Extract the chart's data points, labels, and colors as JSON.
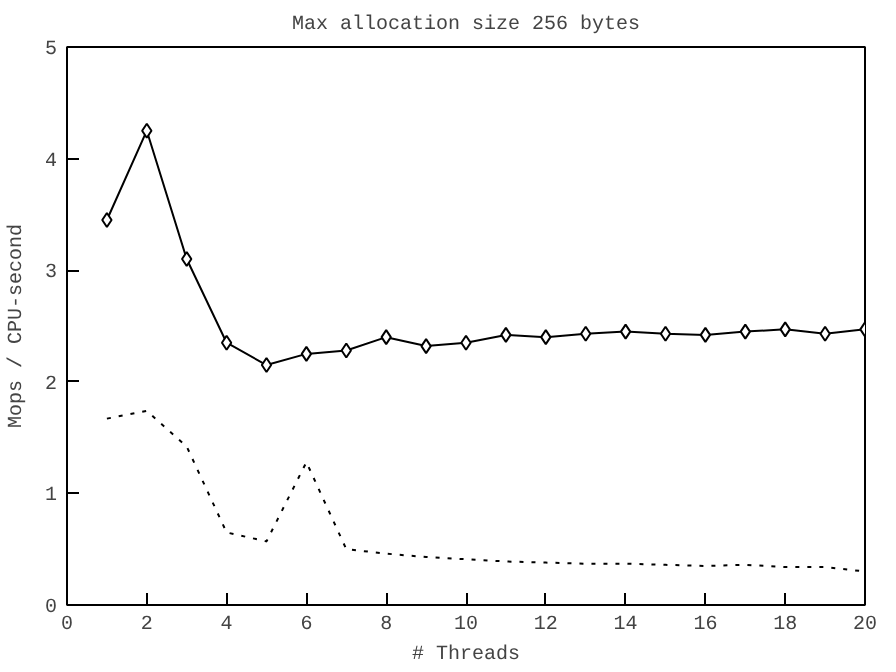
{
  "chart_data": {
    "type": "line",
    "title": "Max allocation size 256 bytes",
    "xlabel": "# Threads",
    "ylabel": "Mops / CPU-second",
    "x": [
      1,
      2,
      3,
      4,
      5,
      6,
      7,
      8,
      9,
      10,
      11,
      12,
      13,
      14,
      15,
      16,
      17,
      18,
      19,
      20
    ],
    "series": [
      {
        "color": "#000000",
        "marker": "diamond",
        "line_style": "solid",
        "values": [
          3.45,
          4.25,
          3.1,
          2.35,
          2.15,
          2.25,
          2.28,
          2.4,
          2.32,
          2.35,
          2.42,
          2.4,
          2.43,
          2.45,
          2.43,
          2.42,
          2.45,
          2.47,
          2.43,
          2.47
        ]
      },
      {
        "color": "#000000",
        "marker": "none",
        "line_style": "dotted",
        "values": [
          1.67,
          1.74,
          1.42,
          0.65,
          0.57,
          1.28,
          0.5,
          0.46,
          0.43,
          0.41,
          0.39,
          0.38,
          0.37,
          0.37,
          0.36,
          0.35,
          0.36,
          0.34,
          0.34,
          0.3
        ]
      }
    ],
    "xlim": [
      0,
      20
    ],
    "ylim": [
      0,
      5
    ],
    "xticks": [
      0,
      2,
      4,
      6,
      8,
      10,
      12,
      14,
      16,
      18,
      20
    ],
    "yticks": [
      0,
      1,
      2,
      3,
      4,
      5
    ],
    "grid": false
  }
}
